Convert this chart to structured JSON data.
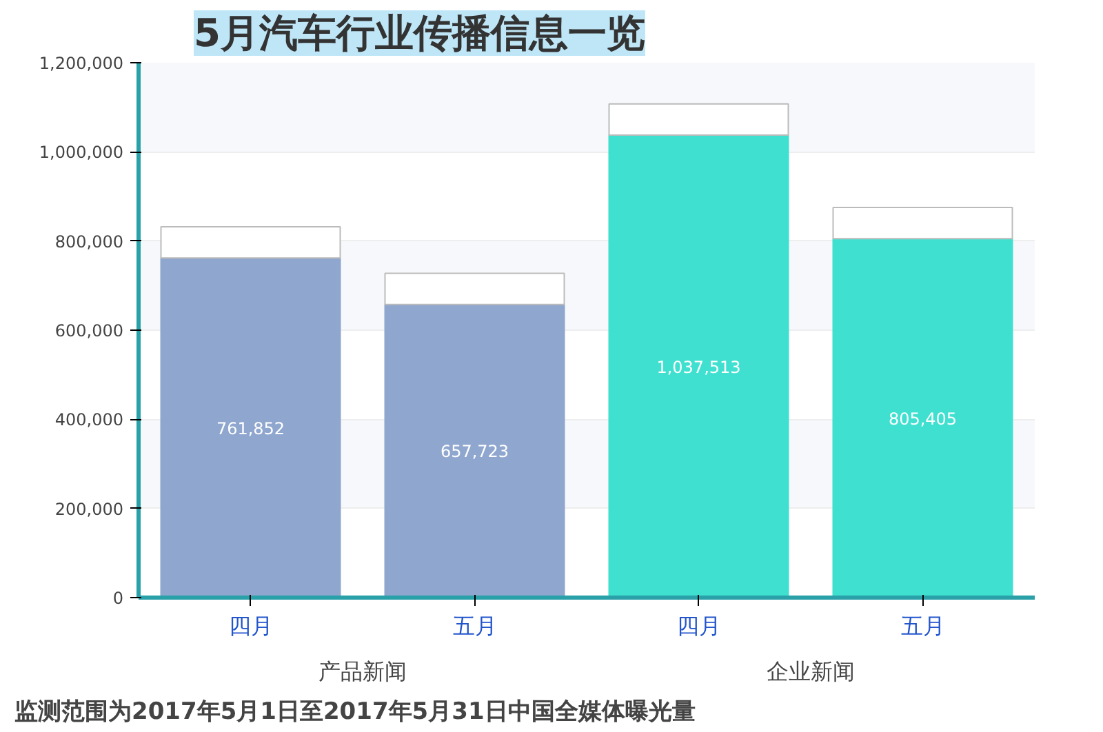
{
  "chart_data": {
    "type": "bar",
    "stacked": true,
    "title": "5月汽车行业传播信息一览",
    "categories": [
      "四月",
      "五月",
      "四月",
      "五月"
    ],
    "series": [
      {
        "colors": [
          "#8fa6cf",
          "#8fa6cf",
          "#40e0d0",
          "#40e0d0"
        ],
        "values": [
          761852,
          657723,
          1037513,
          805405
        ],
        "value_labels": [
          "761,852",
          "657,723",
          "1,037,513",
          "805,405"
        ]
      },
      {
        "color": "#ffffff",
        "values": [
          70000,
          70000,
          70000,
          70000
        ]
      }
    ],
    "ylim": [
      0,
      1200000
    ],
    "yticks": [
      {
        "value": 0,
        "label": "0"
      },
      {
        "value": 200000,
        "label": "200,000"
      },
      {
        "value": 400000,
        "label": "400,000"
      },
      {
        "value": 600000,
        "label": "600,000"
      },
      {
        "value": 800000,
        "label": "800,000"
      },
      {
        "value": 1000000,
        "label": "1,000,000"
      },
      {
        "value": 1200000,
        "label": "1,200,000"
      }
    ],
    "grid": "y",
    "annotations": [
      "产品新闻",
      "企业新闻",
      "监测范围为2017年5月1日至2017年5月31日中国全媒体曝光量"
    ]
  }
}
